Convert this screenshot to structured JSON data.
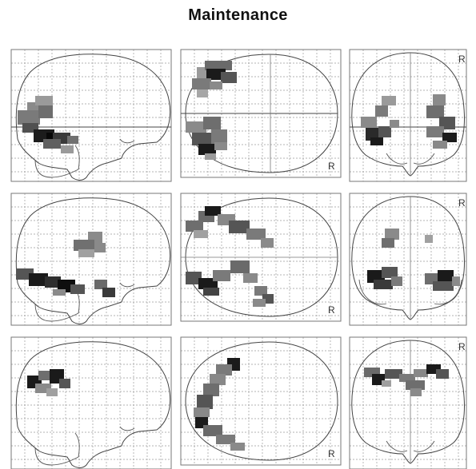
{
  "title": "Maintenance",
  "side_label": "R",
  "colors": {
    "blob_dark": "#101010",
    "blob_light": "#a8a8a8",
    "outline": "#444444",
    "grid": "#9a9a9a"
  },
  "rows": [
    {
      "row": 1,
      "views": [
        "sagittal",
        "transverse",
        "coronal"
      ]
    },
    {
      "row": 2,
      "views": [
        "sagittal",
        "transverse",
        "coronal"
      ]
    },
    {
      "row": 3,
      "views": [
        "sagittal",
        "transverse",
        "coronal"
      ]
    }
  ]
}
